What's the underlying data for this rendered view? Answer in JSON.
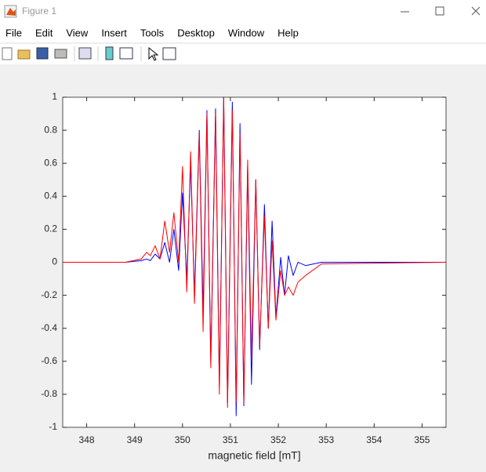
{
  "window": {
    "title": "Figure 1",
    "menu": [
      "File",
      "Edit",
      "View",
      "Insert",
      "Tools",
      "Desktop",
      "Window",
      "Help"
    ]
  },
  "chart_data": {
    "type": "line",
    "xlabel": "magnetic field [mT]",
    "x": [
      347.5,
      348.81,
      349.14,
      349.25,
      349.33,
      349.43,
      349.53,
      349.63,
      349.73,
      349.82,
      349.92,
      350.0,
      350.09,
      350.17,
      350.25,
      350.35,
      350.43,
      350.51,
      350.59,
      350.69,
      350.77,
      350.86,
      350.94,
      351.04,
      351.12,
      351.2,
      351.28,
      351.36,
      351.44,
      351.53,
      351.61,
      351.71,
      351.79,
      351.87,
      351.95,
      352.05,
      352.13,
      352.21,
      352.31,
      352.41,
      352.57,
      352.9,
      355.5
    ],
    "series": [
      {
        "color": "#0000ff",
        "values": [
          0,
          0,
          0.01,
          0.02,
          0.01,
          0.05,
          0.02,
          0.12,
          0.0,
          0.2,
          -0.05,
          0.42,
          -0.1,
          0.6,
          -0.2,
          0.8,
          -0.3,
          0.92,
          -0.6,
          0.93,
          -0.75,
          1.0,
          -0.85,
          0.97,
          -0.93,
          0.84,
          -0.87,
          0.58,
          -0.74,
          0.5,
          -0.53,
          0.35,
          -0.4,
          0.25,
          -0.33,
          0.03,
          -0.2,
          0.04,
          -0.08,
          0.0,
          -0.02,
          0.0,
          0
        ]
      },
      {
        "color": "#ff0000",
        "values": [
          0,
          0,
          0.02,
          0.06,
          0.04,
          0.1,
          0.02,
          0.25,
          0.06,
          0.3,
          0.0,
          0.58,
          -0.18,
          0.67,
          -0.25,
          0.78,
          -0.42,
          0.9,
          -0.64,
          0.9,
          -0.8,
          1.0,
          -0.88,
          0.92,
          -0.85,
          0.78,
          -0.85,
          0.62,
          -0.58,
          0.5,
          -0.5,
          0.28,
          -0.4,
          0.13,
          -0.35,
          -0.05,
          -0.2,
          -0.15,
          -0.2,
          -0.12,
          -0.08,
          -0.01,
          0
        ]
      }
    ],
    "xlim": [
      347.5,
      355.5
    ],
    "xticks": [
      348,
      349,
      350,
      351,
      352,
      353,
      354,
      355
    ],
    "ylim": [
      -1,
      1
    ],
    "yticks": [
      -1,
      -0.8,
      -0.6,
      -0.4,
      -0.2,
      0,
      0.2,
      0.4,
      0.6,
      0.8,
      1
    ],
    "grid": false
  }
}
